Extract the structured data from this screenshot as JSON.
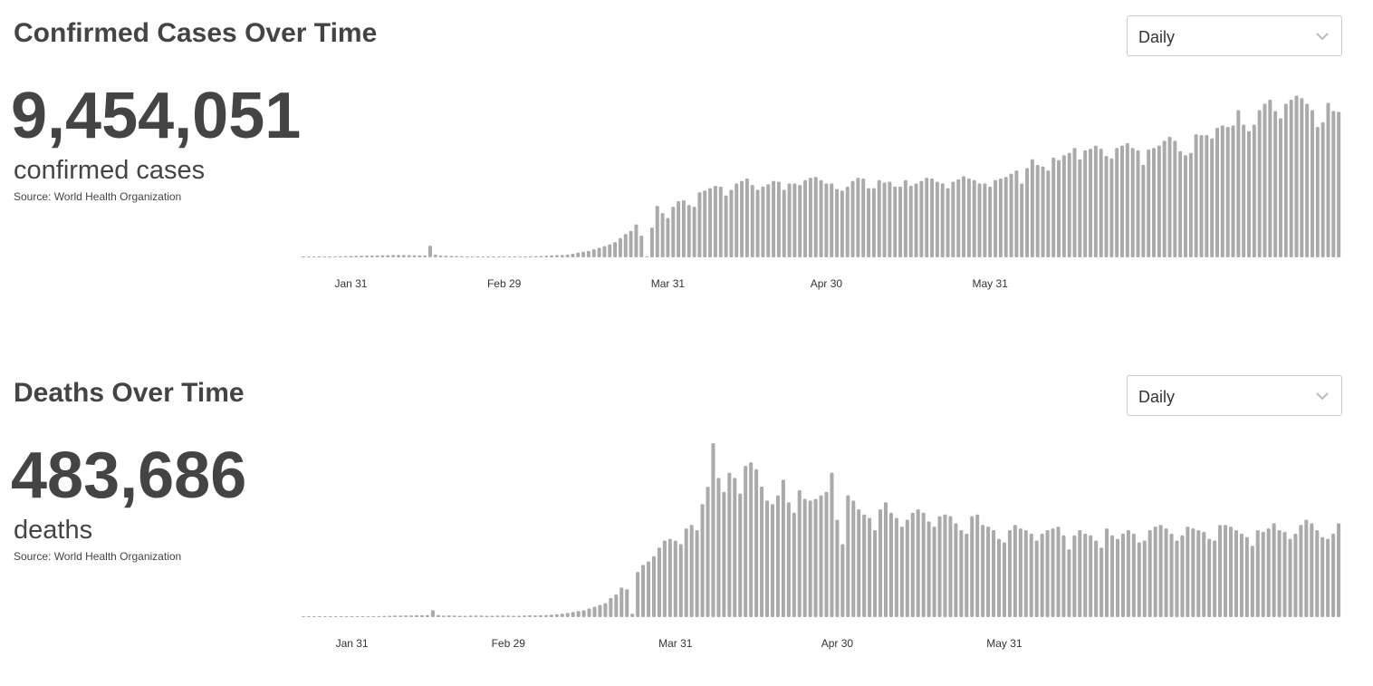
{
  "cases_panel": {
    "title": "Confirmed Cases Over Time",
    "selector": {
      "value": "Daily",
      "icon": "chevron-down-icon"
    },
    "total": "9,454,051",
    "unit_label": "confirmed cases",
    "source": "Source: World Health Organization"
  },
  "deaths_panel": {
    "title": "Deaths Over Time",
    "selector": {
      "value": "Daily",
      "icon": "chevron-down-icon"
    },
    "total": "483,686",
    "unit_label": "deaths",
    "source": "Source: World Health Organization"
  },
  "colors": {
    "bar": "#aaaaaa",
    "text": "#444444",
    "border": "#cccccc"
  },
  "chart_data": [
    {
      "type": "bar",
      "title": "Confirmed Cases Over Time",
      "x_start": "Jan 22",
      "x_ticks": [
        "Jan 31",
        "Feb 29",
        "Mar 31",
        "Apr 30",
        "May 31"
      ],
      "values": [
        0,
        0,
        0,
        0,
        0,
        0,
        0,
        1200,
        1500,
        1700,
        1900,
        2000,
        2200,
        2300,
        2500,
        2700,
        2800,
        3000,
        3000,
        2900,
        2800,
        2700,
        2500,
        2400,
        14500,
        3500,
        2400,
        2000,
        1800,
        1500,
        1200,
        900,
        800,
        700,
        600,
        500,
        500,
        600,
        700,
        800,
        900,
        1000,
        1100,
        1200,
        1400,
        1700,
        2000,
        2500,
        2800,
        3000,
        3500,
        4500,
        6000,
        7000,
        8000,
        10000,
        12000,
        14000,
        16000,
        19000,
        24000,
        29000,
        33000,
        41000,
        27000,
        0,
        37000,
        64000,
        55000,
        49000,
        63000,
        70000,
        71000,
        65000,
        63000,
        81000,
        83000,
        86000,
        89000,
        88000,
        77000,
        84000,
        92000,
        95000,
        98000,
        90000,
        84000,
        88000,
        91000,
        95000,
        94000,
        84000,
        92000,
        92000,
        90000,
        96000,
        99000,
        100000,
        96000,
        92000,
        92000,
        85000,
        83000,
        88000,
        95000,
        99000,
        98000,
        86000,
        86000,
        96000,
        93000,
        94000,
        88000,
        88000,
        96000,
        89000,
        92000,
        95000,
        99000,
        98000,
        94000,
        92000,
        86000,
        94000,
        97000,
        101000,
        98000,
        96000,
        92000,
        92000,
        88000,
        96000,
        98000,
        100000,
        104000,
        108000,
        92000,
        111000,
        122000,
        115000,
        113000,
        108000,
        124000,
        121000,
        127000,
        130000,
        136000,
        122000,
        133000,
        135000,
        139000,
        135000,
        126000,
        123000,
        136000,
        139000,
        142000,
        136000,
        133000,
        115000,
        134000,
        136000,
        139000,
        145000,
        150000,
        145000,
        132000,
        127000,
        130000,
        153000,
        152000,
        152000,
        148000,
        161000,
        164000,
        162000,
        164000,
        183000,
        165000,
        157000,
        165000,
        183000,
        191000,
        196000,
        182000,
        173000,
        191000,
        196000,
        201000,
        198000,
        191000,
        183000,
        162000,
        168000,
        192000,
        182000,
        181000
      ],
      "ylim": [
        0,
        205000
      ]
    },
    {
      "type": "bar",
      "title": "Deaths Over Time",
      "x_start": "Jan 22",
      "x_ticks": [
        "Jan 31",
        "Feb 29",
        "Mar 31",
        "Apr 30",
        "May 31"
      ],
      "values": [
        0,
        0,
        0,
        0,
        0,
        0,
        0,
        20,
        30,
        40,
        40,
        50,
        50,
        60,
        60,
        70,
        80,
        90,
        90,
        100,
        100,
        110,
        110,
        120,
        400,
        120,
        90,
        100,
        90,
        80,
        80,
        90,
        90,
        90,
        80,
        80,
        90,
        90,
        90,
        80,
        80,
        100,
        110,
        100,
        110,
        120,
        140,
        160,
        200,
        250,
        300,
        350,
        400,
        500,
        600,
        700,
        800,
        1100,
        1300,
        1700,
        1600,
        200,
        2600,
        3000,
        3200,
        3500,
        4000,
        4400,
        4500,
        4400,
        4200,
        5100,
        5300,
        5000,
        6500,
        7500,
        10000,
        8000,
        7200,
        8300,
        8000,
        7100,
        8700,
        8900,
        8500,
        7500,
        6700,
        6500,
        7000,
        7900,
        6600,
        6000,
        7300,
        6800,
        6700,
        6800,
        7000,
        7200,
        8300,
        5600,
        4200,
        7000,
        6700,
        6200,
        5900,
        5700,
        5000,
        6200,
        6600,
        6000,
        5700,
        5200,
        5600,
        6000,
        6200,
        6000,
        5500,
        5200,
        5800,
        5900,
        5800,
        5400,
        5000,
        4800,
        5800,
        5900,
        5300,
        5200,
        5000,
        4500,
        4300,
        5000,
        5300,
        5100,
        5000,
        4800,
        4400,
        4800,
        5000,
        5100,
        5200,
        4700,
        3900,
        4700,
        5000,
        4800,
        4700,
        4400,
        4000,
        5100,
        4700,
        4500,
        4800,
        5000,
        4800,
        4300,
        4400,
        5000,
        5200,
        5300,
        5100,
        4800,
        4400,
        4700,
        5200,
        5100,
        5000,
        4900,
        4500,
        4400,
        5300,
        5300,
        5200,
        5000,
        4800,
        4600,
        4100,
        5000,
        4900,
        5100,
        5400,
        5000,
        4900,
        4500,
        4800,
        5300,
        5600,
        5400,
        5000,
        4600,
        4500,
        4800,
        5400
      ],
      "ylim": [
        0,
        10000
      ]
    }
  ]
}
